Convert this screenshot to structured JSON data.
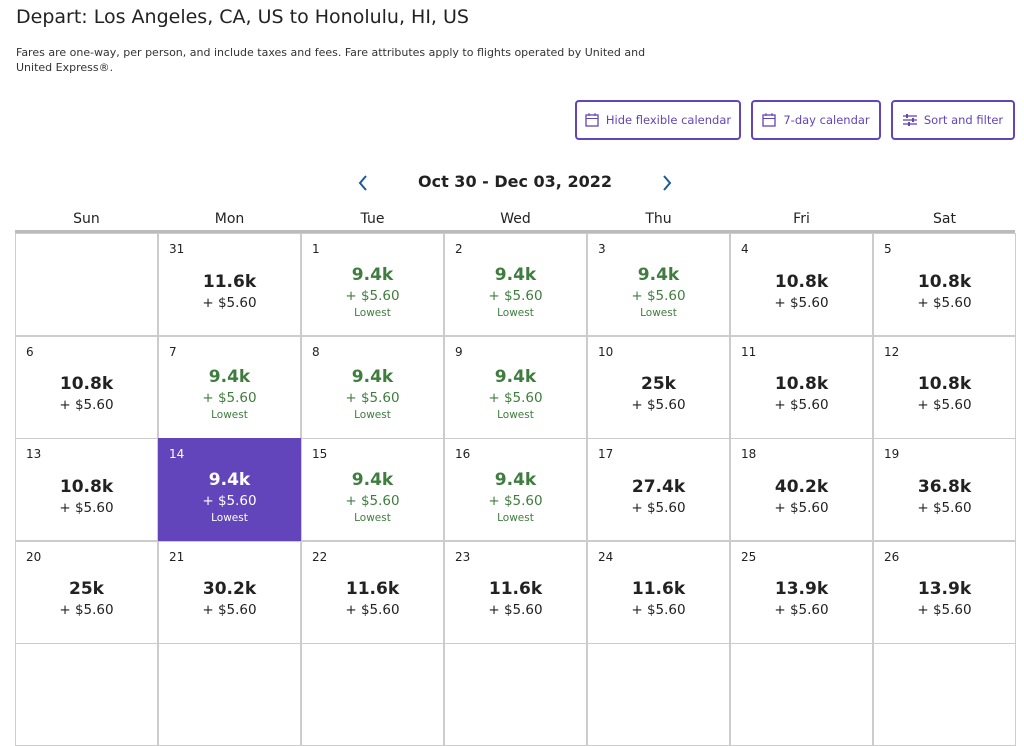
{
  "header": {
    "title": "Depart: Los Angeles, CA, US to Honolulu, HI, US",
    "subtitle": "Fares are one-way, per person, and include taxes and fees. Fare attributes apply to flights operated by United and United Express®."
  },
  "buttons": [
    "Hide flexible calendar",
    "7-day calendar",
    "Sort and filter"
  ],
  "calendar": {
    "range": "Oct 30 - Dec 03, 2022",
    "weekdays": [
      "Sun",
      "Mon",
      "Tue",
      "Wed",
      "Thu",
      "Fri",
      "Sat"
    ],
    "weeks": [
      [
        null,
        {
          "day": "31",
          "miles": "11.6k",
          "fee": "+ $5.60"
        },
        {
          "day": "1",
          "miles": "9.4k",
          "fee": "+ $5.60",
          "note": "Lowest"
        },
        {
          "day": "2",
          "miles": "9.4k",
          "fee": "+ $5.60",
          "note": "Lowest"
        },
        {
          "day": "3",
          "miles": "9.4k",
          "fee": "+ $5.60",
          "note": "Lowest"
        },
        {
          "day": "4",
          "miles": "10.8k",
          "fee": "+ $5.60"
        },
        {
          "day": "5",
          "miles": "10.8k",
          "fee": "+ $5.60"
        }
      ],
      [
        {
          "day": "6",
          "miles": "10.8k",
          "fee": "+ $5.60"
        },
        {
          "day": "7",
          "miles": "9.4k",
          "fee": "+ $5.60",
          "note": "Lowest"
        },
        {
          "day": "8",
          "miles": "9.4k",
          "fee": "+ $5.60",
          "note": "Lowest"
        },
        {
          "day": "9",
          "miles": "9.4k",
          "fee": "+ $5.60",
          "note": "Lowest"
        },
        {
          "day": "10",
          "miles": "25k",
          "fee": "+ $5.60"
        },
        {
          "day": "11",
          "miles": "10.8k",
          "fee": "+ $5.60"
        },
        {
          "day": "12",
          "miles": "10.8k",
          "fee": "+ $5.60"
        }
      ],
      [
        {
          "day": "13",
          "miles": "10.8k",
          "fee": "+ $5.60"
        },
        {
          "day": "14",
          "miles": "9.4k",
          "fee": "+ $5.60",
          "note": "Lowest",
          "selected": true
        },
        {
          "day": "15",
          "miles": "9.4k",
          "fee": "+ $5.60",
          "note": "Lowest"
        },
        {
          "day": "16",
          "miles": "9.4k",
          "fee": "+ $5.60",
          "note": "Lowest"
        },
        {
          "day": "17",
          "miles": "27.4k",
          "fee": "+ $5.60"
        },
        {
          "day": "18",
          "miles": "40.2k",
          "fee": "+ $5.60"
        },
        {
          "day": "19",
          "miles": "36.8k",
          "fee": "+ $5.60"
        }
      ],
      [
        {
          "day": "20",
          "miles": "25k",
          "fee": "+ $5.60"
        },
        {
          "day": "21",
          "miles": "30.2k",
          "fee": "+ $5.60"
        },
        {
          "day": "22",
          "miles": "11.6k",
          "fee": "+ $5.60"
        },
        {
          "day": "23",
          "miles": "11.6k",
          "fee": "+ $5.60"
        },
        {
          "day": "24",
          "miles": "11.6k",
          "fee": "+ $5.60"
        },
        {
          "day": "25",
          "miles": "13.9k",
          "fee": "+ $5.60"
        },
        {
          "day": "26",
          "miles": "13.9k",
          "fee": "+ $5.60"
        }
      ]
    ]
  }
}
